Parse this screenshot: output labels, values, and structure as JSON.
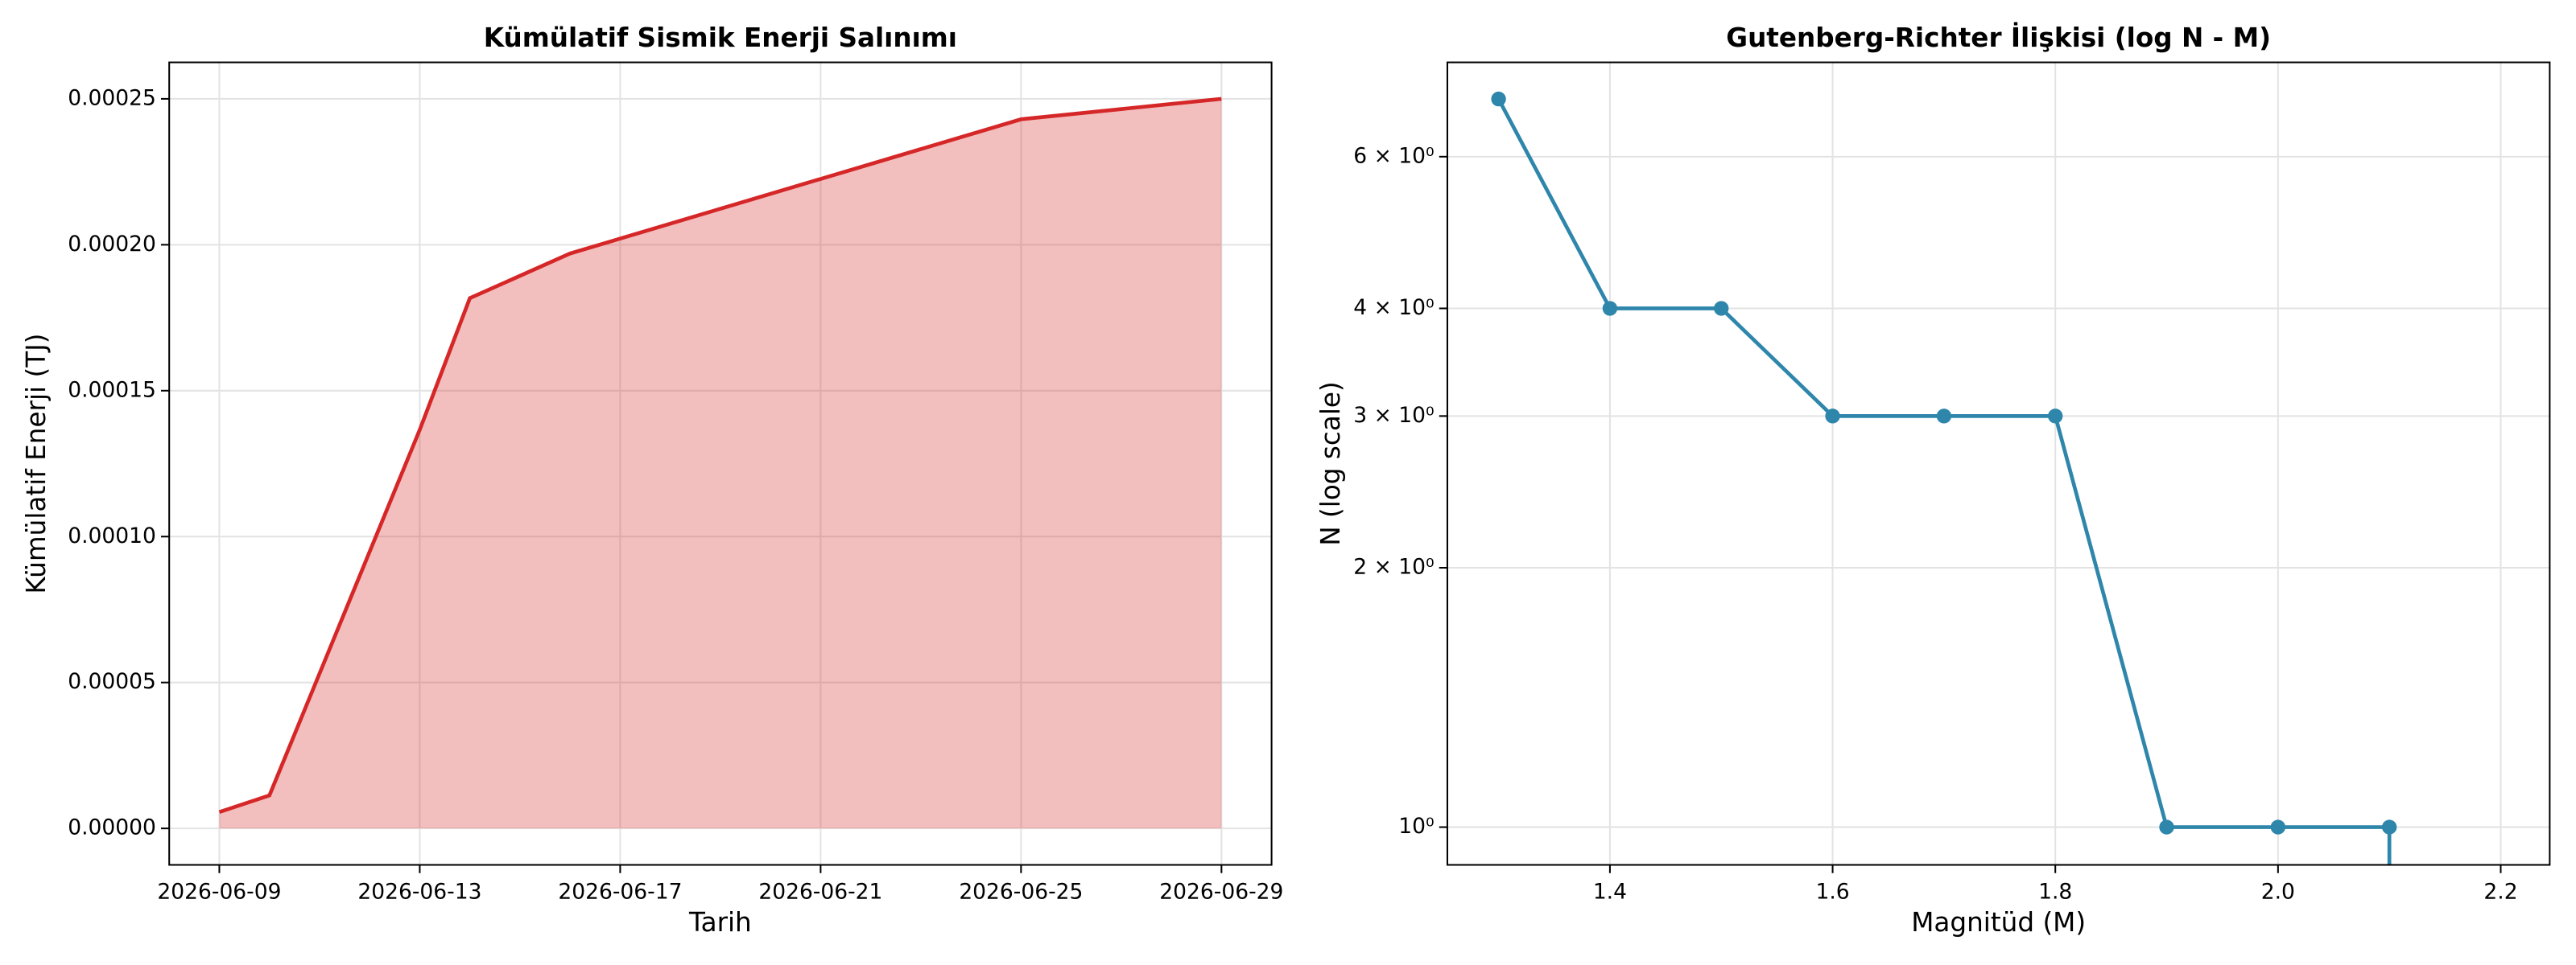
{
  "chart_data": [
    {
      "type": "area",
      "title": "Kümülatif Sismik Enerji Salınımı",
      "xlabel": "Tarih",
      "ylabel": "Kümülatif Enerji (TJ)",
      "x": [
        "2026-06-09",
        "2026-06-10",
        "2026-06-13",
        "2026-06-14",
        "2026-06-16",
        "2026-06-25",
        "2026-06-29"
      ],
      "series": [
        {
          "color": "#d62728",
          "values": [
            5.6e-06,
            1.13e-05,
            0.0001366,
            0.0001817,
            0.000197,
            0.000243,
            0.00025
          ]
        }
      ],
      "xlim": [
        "2026-06-08",
        "2026-06-30"
      ],
      "xticks": [
        "2026-06-09",
        "2026-06-13",
        "2026-06-17",
        "2026-06-21",
        "2026-06-25",
        "2026-06-29"
      ],
      "ylim": [
        -1.25e-05,
        0.0002625
      ],
      "yticks": [
        {
          "value": 0,
          "label": "0.00000"
        },
        {
          "value": 5e-05,
          "label": "0.00005"
        },
        {
          "value": 0.0001,
          "label": "0.00010"
        },
        {
          "value": 0.00015,
          "label": "0.00015"
        },
        {
          "value": 0.0002,
          "label": "0.00020"
        },
        {
          "value": 0.00025,
          "label": "0.00025"
        }
      ],
      "grid": true
    },
    {
      "type": "line",
      "title": "Gutenberg-Richter İlişkisi (log N - M)",
      "xlabel": "Magnitüd (M)",
      "ylabel": "N (log scale)",
      "log_y": true,
      "x": [
        1.3,
        1.4,
        1.5,
        1.6,
        1.7,
        1.8,
        1.9,
        2.0,
        2.1,
        2.2
      ],
      "series": [
        {
          "color": "#2e86ab",
          "values": [
            7,
            4,
            4,
            3,
            3,
            3,
            1,
            1,
            1,
            0
          ]
        }
      ],
      "xlim": [
        1.254,
        2.244
      ],
      "xticks": [
        1.4,
        1.6,
        1.8,
        {
          "value": 2,
          "label": "2.0"
        },
        2.2
      ],
      "ylim": [
        0.904,
        7.72
      ],
      "yticks": [
        {
          "value": 1,
          "label": "10⁰"
        },
        {
          "value": 2,
          "label": "2 × 10⁰"
        },
        {
          "value": 3,
          "label": "3 × 10⁰"
        },
        {
          "value": 4,
          "label": "4 × 10⁰"
        },
        {
          "value": 6,
          "label": "6 × 10⁰"
        }
      ],
      "grid": true
    }
  ]
}
